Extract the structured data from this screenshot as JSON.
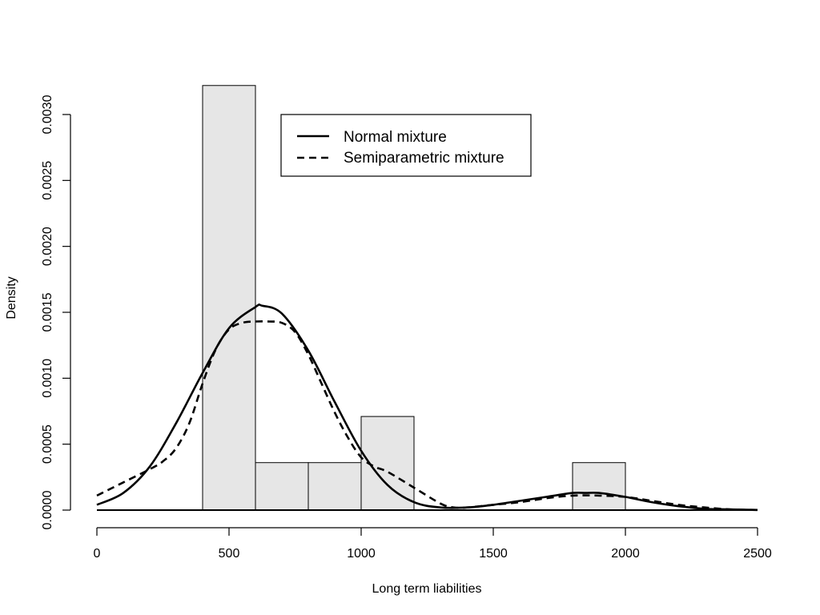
{
  "chart_data": {
    "type": "histogram",
    "xlabel": "Long term liabilities",
    "ylabel": "Density",
    "xlim": [
      0,
      2500
    ],
    "ylim": [
      0,
      0.003
    ],
    "x_ticks": [
      "0",
      "500",
      "1000",
      "1500",
      "2000",
      "2500"
    ],
    "y_ticks": [
      "0.0000",
      "0.0005",
      "0.0010",
      "0.0015",
      "0.0020",
      "0.0025",
      "0.0030"
    ],
    "grid": false,
    "legend_placement": "top-center",
    "bar_fill": "#e6e6e6",
    "bins": [
      {
        "x0": 400,
        "x1": 600,
        "density": 0.00322
      },
      {
        "x0": 600,
        "x1": 800,
        "density": 0.00036
      },
      {
        "x0": 800,
        "x1": 1000,
        "density": 0.00036
      },
      {
        "x0": 1000,
        "x1": 1200,
        "density": 0.00071
      },
      {
        "x0": 1800,
        "x1": 2000,
        "density": 0.00036
      }
    ],
    "series": [
      {
        "name": "Normal mixture",
        "style": "solid",
        "x": [
          0,
          100,
          200,
          300,
          400,
          500,
          600,
          625,
          700,
          800,
          900,
          1000,
          1100,
          1200,
          1300,
          1400,
          1500,
          1600,
          1700,
          1800,
          1850,
          1900,
          2000,
          2100,
          2200,
          2300,
          2400,
          2500
        ],
        "y": [
          4e-05,
          0.00013,
          0.00033,
          0.00066,
          0.00104,
          0.00138,
          0.00154,
          0.00155,
          0.00149,
          0.00121,
          0.00082,
          0.00045,
          0.00019,
          6e-05,
          2e-05,
          2e-05,
          4e-05,
          7e-05,
          0.0001,
          0.00013,
          0.00013,
          0.00013,
          0.0001,
          6e-05,
          3e-05,
          1e-05,
          5e-06,
          1e-06
        ]
      },
      {
        "name": "Semiparametric mixture",
        "style": "dashed",
        "x": [
          0,
          100,
          200,
          250,
          300,
          350,
          400,
          450,
          500,
          550,
          600,
          650,
          700,
          750,
          800,
          850,
          900,
          950,
          1000,
          1050,
          1100,
          1200,
          1300,
          1350,
          1400,
          1500,
          1600,
          1700,
          1800,
          1900,
          2000,
          2100,
          2200,
          2300,
          2400,
          2500
        ],
        "y": [
          0.00011,
          0.00021,
          0.00031,
          0.00037,
          0.00047,
          0.00066,
          0.00096,
          0.00122,
          0.00137,
          0.00142,
          0.00143,
          0.00143,
          0.00142,
          0.00135,
          0.00118,
          0.00096,
          0.00074,
          0.00055,
          0.0004,
          0.00033,
          0.00029,
          0.00017,
          5e-05,
          2e-05,
          2e-05,
          4e-05,
          6e-05,
          9e-05,
          0.00011,
          0.00011,
          0.0001,
          7e-05,
          4e-05,
          2e-05,
          5e-06,
          1e-06
        ]
      }
    ]
  }
}
